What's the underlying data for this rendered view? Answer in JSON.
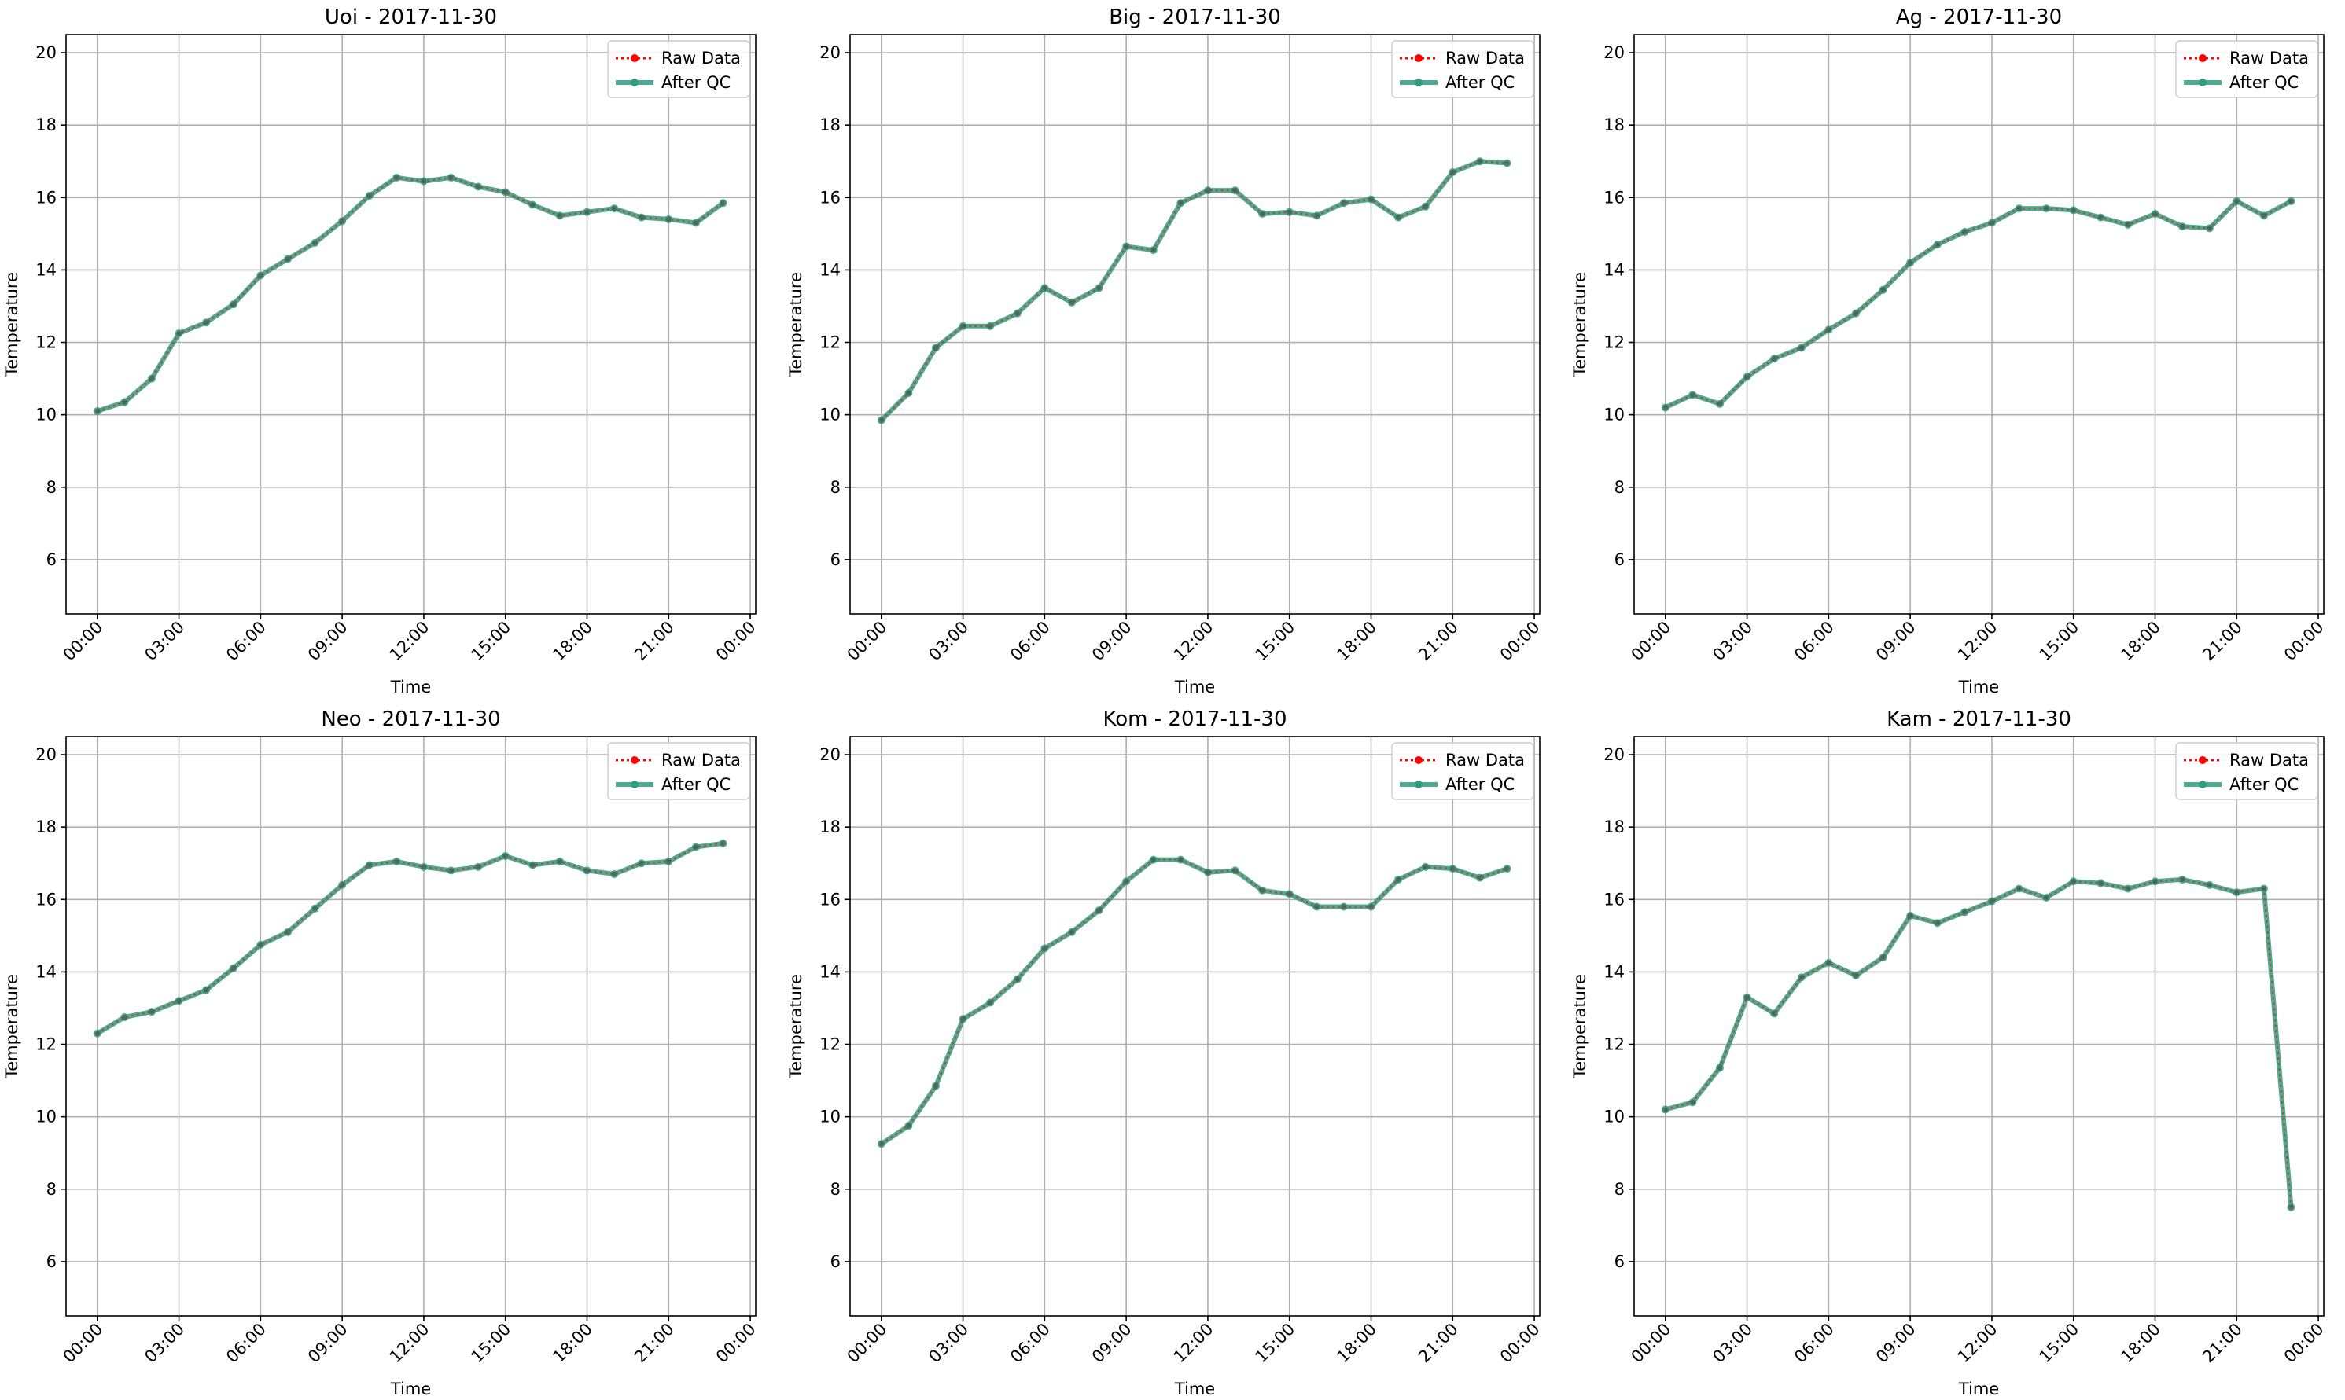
{
  "chart_data": [
    {
      "type": "line",
      "title": "Uoi - 2017-11-30",
      "xlabel": "Time",
      "ylabel": "Temperature",
      "ylim": [
        4.5,
        20.5
      ],
      "yticks": [
        6,
        8,
        10,
        12,
        14,
        16,
        18,
        20
      ],
      "xticks": [
        "00:00",
        "03:00",
        "06:00",
        "09:00",
        "12:00",
        "15:00",
        "18:00",
        "21:00",
        "00:00"
      ],
      "x": [
        "00:00",
        "01:00",
        "02:00",
        "03:00",
        "04:00",
        "05:00",
        "06:00",
        "07:00",
        "08:00",
        "09:00",
        "10:00",
        "11:00",
        "12:00",
        "13:00",
        "14:00",
        "15:00",
        "16:00",
        "17:00",
        "18:00",
        "19:00",
        "20:00",
        "21:00",
        "22:00",
        "23:00"
      ],
      "grid": true,
      "legend": "upper-right",
      "series": [
        {
          "name": "Raw Data",
          "color": "#ff0000",
          "values": [
            10.1,
            10.35,
            11.0,
            12.25,
            12.55,
            13.05,
            13.85,
            14.3,
            14.75,
            15.35,
            16.05,
            16.55,
            16.45,
            16.55,
            16.3,
            16.15,
            15.8,
            15.5,
            15.6,
            15.7,
            15.45,
            15.4,
            15.3,
            15.85
          ]
        },
        {
          "name": "After QC",
          "color": "#2e9e7c",
          "values": [
            10.1,
            10.35,
            11.0,
            12.25,
            12.55,
            13.05,
            13.85,
            14.3,
            14.75,
            15.35,
            16.05,
            16.55,
            16.45,
            16.55,
            16.3,
            16.15,
            15.8,
            15.5,
            15.6,
            15.7,
            15.45,
            15.4,
            15.3,
            15.85
          ]
        }
      ]
    },
    {
      "type": "line",
      "title": "Big - 2017-11-30",
      "xlabel": "Time",
      "ylabel": "Temperature",
      "ylim": [
        4.5,
        20.5
      ],
      "yticks": [
        6,
        8,
        10,
        12,
        14,
        16,
        18,
        20
      ],
      "xticks": [
        "00:00",
        "03:00",
        "06:00",
        "09:00",
        "12:00",
        "15:00",
        "18:00",
        "21:00",
        "00:00"
      ],
      "x": [
        "00:00",
        "01:00",
        "02:00",
        "03:00",
        "04:00",
        "05:00",
        "06:00",
        "07:00",
        "08:00",
        "09:00",
        "10:00",
        "11:00",
        "12:00",
        "13:00",
        "14:00",
        "15:00",
        "16:00",
        "17:00",
        "18:00",
        "19:00",
        "20:00",
        "21:00",
        "22:00",
        "23:00"
      ],
      "grid": true,
      "legend": "upper-right",
      "series": [
        {
          "name": "Raw Data",
          "color": "#ff0000",
          "values": [
            9.85,
            10.6,
            11.85,
            12.45,
            12.45,
            12.8,
            13.5,
            13.1,
            13.5,
            14.65,
            14.55,
            15.85,
            16.2,
            16.2,
            15.55,
            15.6,
            15.5,
            15.85,
            15.95,
            15.45,
            15.75,
            16.7,
            17.0,
            16.95
          ]
        },
        {
          "name": "After QC",
          "color": "#2e9e7c",
          "values": [
            9.85,
            10.6,
            11.85,
            12.45,
            12.45,
            12.8,
            13.5,
            13.1,
            13.5,
            14.65,
            14.55,
            15.85,
            16.2,
            16.2,
            15.55,
            15.6,
            15.5,
            15.85,
            15.95,
            15.45,
            15.75,
            16.7,
            17.0,
            16.95
          ]
        }
      ]
    },
    {
      "type": "line",
      "title": "Ag - 2017-11-30",
      "xlabel": "Time",
      "ylabel": "Temperature",
      "ylim": [
        4.5,
        20.5
      ],
      "yticks": [
        6,
        8,
        10,
        12,
        14,
        16,
        18,
        20
      ],
      "xticks": [
        "00:00",
        "03:00",
        "06:00",
        "09:00",
        "12:00",
        "15:00",
        "18:00",
        "21:00",
        "00:00"
      ],
      "x": [
        "00:00",
        "01:00",
        "02:00",
        "03:00",
        "04:00",
        "05:00",
        "06:00",
        "07:00",
        "08:00",
        "09:00",
        "10:00",
        "11:00",
        "12:00",
        "13:00",
        "14:00",
        "15:00",
        "16:00",
        "17:00",
        "18:00",
        "19:00",
        "20:00",
        "21:00",
        "22:00",
        "23:00"
      ],
      "grid": true,
      "legend": "upper-right",
      "series": [
        {
          "name": "Raw Data",
          "color": "#ff0000",
          "values": [
            10.2,
            10.55,
            10.3,
            11.05,
            11.55,
            11.85,
            12.35,
            12.8,
            13.45,
            14.2,
            14.7,
            15.05,
            15.3,
            15.7,
            15.7,
            15.65,
            15.45,
            15.25,
            15.55,
            15.2,
            15.15,
            15.9,
            15.5,
            15.9
          ]
        },
        {
          "name": "After QC",
          "color": "#2e9e7c",
          "values": [
            10.2,
            10.55,
            10.3,
            11.05,
            11.55,
            11.85,
            12.35,
            12.8,
            13.45,
            14.2,
            14.7,
            15.05,
            15.3,
            15.7,
            15.7,
            15.65,
            15.45,
            15.25,
            15.55,
            15.2,
            15.15,
            15.9,
            15.5,
            15.9
          ]
        }
      ]
    },
    {
      "type": "line",
      "title": "Neo - 2017-11-30",
      "xlabel": "Time",
      "ylabel": "Temperature",
      "ylim": [
        4.5,
        20.5
      ],
      "yticks": [
        6,
        8,
        10,
        12,
        14,
        16,
        18,
        20
      ],
      "xticks": [
        "00:00",
        "03:00",
        "06:00",
        "09:00",
        "12:00",
        "15:00",
        "18:00",
        "21:00",
        "00:00"
      ],
      "x": [
        "00:00",
        "01:00",
        "02:00",
        "03:00",
        "04:00",
        "05:00",
        "06:00",
        "07:00",
        "08:00",
        "09:00",
        "10:00",
        "11:00",
        "12:00",
        "13:00",
        "14:00",
        "15:00",
        "16:00",
        "17:00",
        "18:00",
        "19:00",
        "20:00",
        "21:00",
        "22:00",
        "23:00"
      ],
      "grid": true,
      "legend": "upper-right",
      "series": [
        {
          "name": "Raw Data",
          "color": "#ff0000",
          "values": [
            12.3,
            12.75,
            12.9,
            13.2,
            13.5,
            14.1,
            14.75,
            15.1,
            15.75,
            16.4,
            16.95,
            17.05,
            16.9,
            16.8,
            16.9,
            17.2,
            16.95,
            17.05,
            16.8,
            16.7,
            17.0,
            17.05,
            17.45,
            17.55
          ]
        },
        {
          "name": "After QC",
          "color": "#2e9e7c",
          "values": [
            12.3,
            12.75,
            12.9,
            13.2,
            13.5,
            14.1,
            14.75,
            15.1,
            15.75,
            16.4,
            16.95,
            17.05,
            16.9,
            16.8,
            16.9,
            17.2,
            16.95,
            17.05,
            16.8,
            16.7,
            17.0,
            17.05,
            17.45,
            17.55
          ]
        }
      ]
    },
    {
      "type": "line",
      "title": "Kom - 2017-11-30",
      "xlabel": "Time",
      "ylabel": "Temperature",
      "ylim": [
        4.5,
        20.5
      ],
      "yticks": [
        6,
        8,
        10,
        12,
        14,
        16,
        18,
        20
      ],
      "xticks": [
        "00:00",
        "03:00",
        "06:00",
        "09:00",
        "12:00",
        "15:00",
        "18:00",
        "21:00",
        "00:00"
      ],
      "x": [
        "00:00",
        "01:00",
        "02:00",
        "03:00",
        "04:00",
        "05:00",
        "06:00",
        "07:00",
        "08:00",
        "09:00",
        "10:00",
        "11:00",
        "12:00",
        "13:00",
        "14:00",
        "15:00",
        "16:00",
        "17:00",
        "18:00",
        "19:00",
        "20:00",
        "21:00",
        "22:00",
        "23:00"
      ],
      "grid": true,
      "legend": "upper-right",
      "series": [
        {
          "name": "Raw Data",
          "color": "#ff0000",
          "values": [
            9.25,
            9.75,
            10.85,
            12.7,
            13.15,
            13.8,
            14.65,
            15.1,
            15.7,
            16.5,
            17.1,
            17.1,
            16.75,
            16.8,
            16.25,
            16.15,
            15.8,
            15.8,
            15.8,
            16.55,
            16.9,
            16.85,
            16.6,
            16.85
          ]
        },
        {
          "name": "After QC",
          "color": "#2e9e7c",
          "values": [
            9.25,
            9.75,
            10.85,
            12.7,
            13.15,
            13.8,
            14.65,
            15.1,
            15.7,
            16.5,
            17.1,
            17.1,
            16.75,
            16.8,
            16.25,
            16.15,
            15.8,
            15.8,
            15.8,
            16.55,
            16.9,
            16.85,
            16.6,
            16.85
          ]
        }
      ]
    },
    {
      "type": "line",
      "title": "Kam - 2017-11-30",
      "xlabel": "Time",
      "ylabel": "Temperature",
      "ylim": [
        4.5,
        20.5
      ],
      "yticks": [
        6,
        8,
        10,
        12,
        14,
        16,
        18,
        20
      ],
      "xticks": [
        "00:00",
        "03:00",
        "06:00",
        "09:00",
        "12:00",
        "15:00",
        "18:00",
        "21:00",
        "00:00"
      ],
      "x": [
        "00:00",
        "01:00",
        "02:00",
        "03:00",
        "04:00",
        "05:00",
        "06:00",
        "07:00",
        "08:00",
        "09:00",
        "10:00",
        "11:00",
        "12:00",
        "13:00",
        "14:00",
        "15:00",
        "16:00",
        "17:00",
        "18:00",
        "19:00",
        "20:00",
        "21:00",
        "22:00",
        "23:00"
      ],
      "grid": true,
      "legend": "upper-right",
      "series": [
        {
          "name": "Raw Data",
          "color": "#ff0000",
          "values": [
            10.2,
            10.4,
            11.35,
            13.3,
            12.85,
            13.85,
            14.25,
            13.9,
            14.4,
            15.55,
            15.35,
            15.65,
            15.95,
            16.3,
            16.05,
            16.5,
            16.45,
            16.3,
            16.5,
            16.55,
            16.4,
            16.2,
            16.3,
            7.5
          ]
        },
        {
          "name": "After QC",
          "color": "#2e9e7c",
          "values": [
            10.2,
            10.4,
            11.35,
            13.3,
            12.85,
            13.85,
            14.25,
            13.9,
            14.4,
            15.55,
            15.35,
            15.65,
            15.95,
            16.3,
            16.05,
            16.5,
            16.45,
            16.3,
            16.5,
            16.55,
            16.4,
            16.2,
            16.3,
            7.5
          ]
        }
      ]
    }
  ]
}
